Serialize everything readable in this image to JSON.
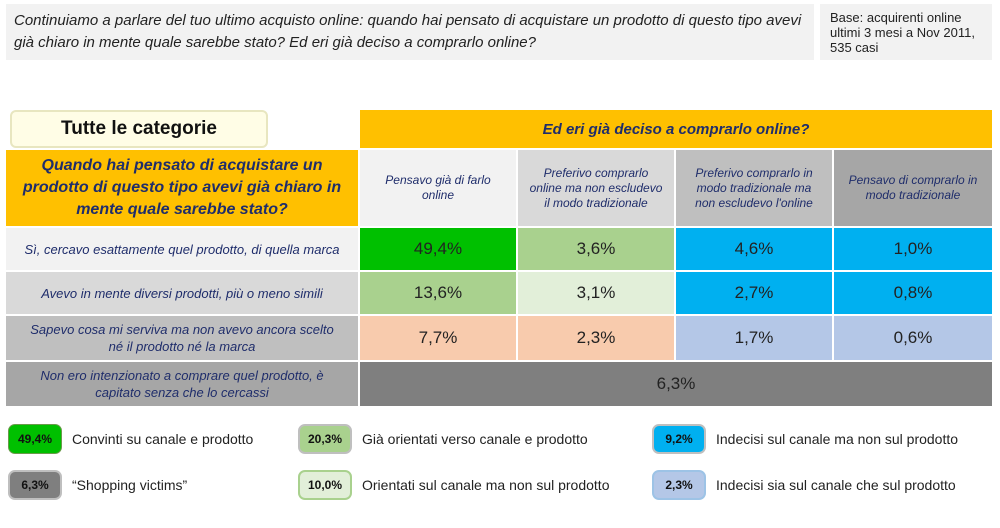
{
  "header": {
    "question": "Continuiamo a parlare del tuo ultimo acquisto online: quando hai pensato di acquistare un prodotto di questo tipo avevi già chiaro in mente quale sarebbe stato? Ed eri già deciso a comprarlo online?",
    "base": "Base: acquirenti online ultimi 3 mesi a Nov 2011, 535 casi"
  },
  "table": {
    "category_label": "Tutte le categorie",
    "top_header": "Ed eri già deciso a comprarlo online?",
    "row_header": "Quando hai pensato di acquistare un prodotto di questo tipo avevi già chiaro in mente quale sarebbe stato?",
    "columns": [
      "Pensavo già di farlo online",
      "Preferivo comprarlo online ma non escludevo il modo tradizionale",
      "Preferivo comprarlo in modo tradizionale ma non escludevo l'online",
      "Pensavo di comprarlo in modo tradizionale"
    ],
    "rows": [
      {
        "label": "Sì, cercavo esattamente quel prodotto, di quella marca",
        "values": [
          "49,4%",
          "3,6%",
          "4,6%",
          "1,0%"
        ]
      },
      {
        "label": "Avevo in mente diversi prodotti, più o meno simili",
        "values": [
          "13,6%",
          "3,1%",
          "2,7%",
          "0,8%"
        ]
      },
      {
        "label": "Sapevo cosa mi serviva ma non avevo ancora scelto né il prodotto né la marca",
        "values": [
          "7,7%",
          "2,3%",
          "1,7%",
          "0,6%"
        ]
      }
    ],
    "last_row": {
      "label": "Non ero intenzionato a comprare quel prodotto, è capitato senza che lo cercassi",
      "value": "6,3%"
    }
  },
  "legend": [
    {
      "value": "49,4%",
      "text": "Convinti su canale e prodotto",
      "color": "#00c000"
    },
    {
      "value": "20,3%",
      "text": "Già orientati verso canale e prodotto",
      "color": "#a9d18e"
    },
    {
      "value": "9,2%",
      "text": "Indecisi sul canale ma non sul prodotto",
      "color": "#00b0f0"
    },
    {
      "value": "6,3%",
      "text": "“Shopping victims”",
      "color": "#7f7f7f"
    },
    {
      "value": "10,0%",
      "text": "Orientati sul canale ma non sul prodotto",
      "color": "#e2efd9"
    },
    {
      "value": "2,3%",
      "text": "Indecisi sia sul canale che sul prodotto",
      "color": "#b4c7e7"
    }
  ],
  "colors": {
    "orange": "#ffc000",
    "green_strong": "#00c000",
    "green_light": "#a9d18e",
    "blue_strong": "#00b0f0",
    "blue_light": "#b4c7e7",
    "peach": "#f8cbad",
    "grey": "#7f7f7f",
    "header_text": "#1f2d6b"
  }
}
